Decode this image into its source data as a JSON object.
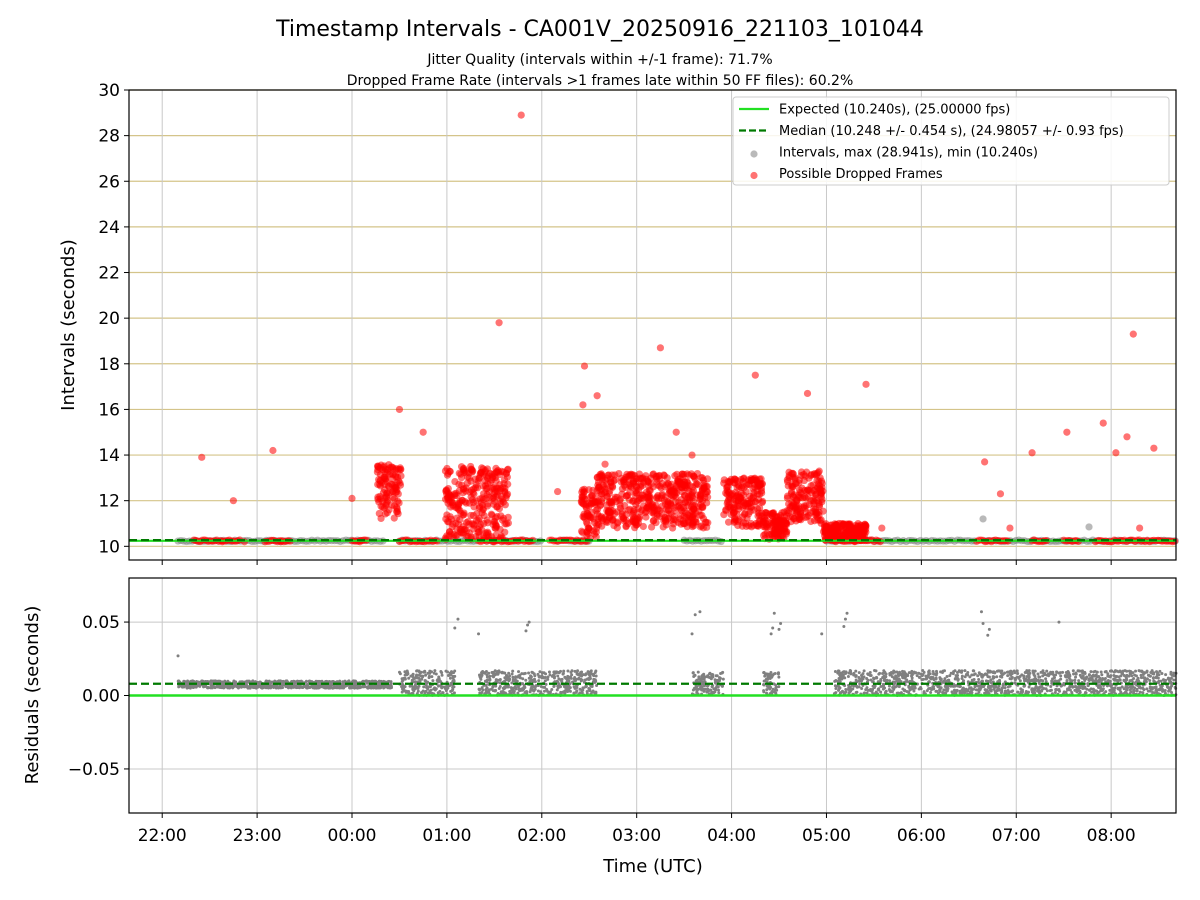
{
  "figure": {
    "title": "Timestamp Intervals - CA001V_20250916_221103_101044",
    "subtitle_1": "Jitter Quality (intervals within +/-1 frame): 71.7%",
    "subtitle_2": "Dropped Frame Rate (intervals >1 frames late within 50 FF files): 60.2%"
  },
  "chart_data": [
    {
      "type": "scatter",
      "panel": "intervals",
      "ylabel": "Intervals (seconds)",
      "ylim": [
        9.4,
        30
      ],
      "yticks": [
        10,
        12,
        14,
        16,
        18,
        20,
        22,
        24,
        26,
        28,
        30
      ],
      "xlim": [
        "21:39",
        "08:41"
      ],
      "horizontal_grid": "on",
      "legend_position": "top-right",
      "expected_line": {
        "value": 10.24,
        "color": "#22e022",
        "label": "Expected (10.240s), (25.00000 fps)"
      },
      "median_line": {
        "value": 10.248,
        "color": "#007a00",
        "label": "Median (10.248 +/- 0.454 s), (24.98057 +/- 0.93 fps)"
      },
      "series": [
        {
          "name": "Intervals, max (28.941s), min (10.240s)",
          "color": "#808080",
          "baseline_segments": [
            [
              "22:10",
              "00:20"
            ],
            [
              "00:30",
              "01:20"
            ],
            [
              "01:25",
              "02:00"
            ],
            [
              "02:10",
              "02:30"
            ],
            [
              "03:30",
              "03:55"
            ],
            [
              "05:00",
              "06:35"
            ],
            [
              "06:40",
              "08:41"
            ]
          ],
          "points": [
            [
              "06:39",
              11.2
            ],
            [
              "07:46",
              10.85
            ]
          ]
        },
        {
          "name": "Possible Dropped Frames",
          "color": "#ff0000",
          "points": [
            [
              "22:25",
              13.9
            ],
            [
              "22:38",
              10.2
            ],
            [
              "22:45",
              12.0
            ],
            [
              "22:52",
              10.2
            ],
            [
              "23:10",
              14.2
            ],
            [
              "23:15",
              10.2
            ],
            [
              "00:00",
              12.1
            ],
            [
              "00:05",
              10.2
            ],
            [
              "00:30",
              16.0
            ],
            [
              "00:45",
              15.0
            ],
            [
              "01:15",
              13.5
            ],
            [
              "01:30",
              10.2
            ],
            [
              "01:33",
              19.8
            ],
            [
              "01:47",
              28.9
            ],
            [
              "02:10",
              12.4
            ],
            [
              "02:26",
              16.2
            ],
            [
              "02:27",
              17.9
            ],
            [
              "02:35",
              16.6
            ],
            [
              "02:40",
              13.6
            ],
            [
              "03:15",
              18.7
            ],
            [
              "03:25",
              15.0
            ],
            [
              "03:35",
              14.0
            ],
            [
              "04:15",
              17.5
            ],
            [
              "04:48",
              16.7
            ],
            [
              "05:25",
              17.1
            ],
            [
              "05:35",
              10.8
            ],
            [
              "06:40",
              13.7
            ],
            [
              "06:50",
              12.3
            ],
            [
              "06:56",
              10.8
            ],
            [
              "07:10",
              14.1
            ],
            [
              "07:32",
              15.0
            ],
            [
              "07:55",
              15.4
            ],
            [
              "08:03",
              14.1
            ],
            [
              "08:10",
              14.8
            ],
            [
              "08:14",
              19.3
            ],
            [
              "08:18",
              10.8
            ],
            [
              "08:27",
              14.3
            ]
          ],
          "dense_clusters": [
            {
              "x": [
                "00:16",
                "00:31"
              ],
              "y": [
                11.2,
                13.6
              ]
            },
            {
              "x": [
                "00:59",
                "01:40"
              ],
              "y": [
                10.3,
                13.5
              ]
            },
            {
              "x": [
                "02:25",
                "02:35"
              ],
              "y": [
                10.3,
                12.5
              ]
            },
            {
              "x": [
                "02:35",
                "03:45"
              ],
              "y": [
                10.8,
                13.2
              ]
            },
            {
              "x": [
                "03:55",
                "04:20"
              ],
              "y": [
                10.8,
                13.0
              ]
            },
            {
              "x": [
                "04:20",
                "04:35"
              ],
              "y": [
                10.3,
                11.5
              ]
            },
            {
              "x": [
                "04:35",
                "04:58"
              ],
              "y": [
                11.0,
                13.3
              ]
            },
            {
              "x": [
                "04:58",
                "05:25"
              ],
              "y": [
                10.2,
                11.0
              ]
            }
          ],
          "baseline_segments": [
            [
              "22:20",
              "22:50"
            ],
            [
              "23:05",
              "23:22"
            ],
            [
              "00:00",
              "00:10"
            ],
            [
              "00:30",
              "00:55"
            ],
            [
              "01:20",
              "01:55"
            ],
            [
              "02:05",
              "02:30"
            ],
            [
              "05:05",
              "05:35"
            ],
            [
              "06:35",
              "06:55"
            ],
            [
              "07:10",
              "07:20"
            ],
            [
              "07:30",
              "07:40"
            ],
            [
              "07:50",
              "08:41"
            ]
          ]
        }
      ],
      "legend": [
        {
          "label": "Expected (10.240s), (25.00000 fps)",
          "marker": "solid-line",
          "color": "#22e022"
        },
        {
          "label": "Median (10.248 +/- 0.454 s), (24.98057 +/- 0.93 fps)",
          "marker": "dashed-line",
          "color": "#007a00"
        },
        {
          "label": "Intervals, max (28.941s), min (10.240s)",
          "marker": "dot",
          "color": "#808080"
        },
        {
          "label": "Possible Dropped Frames",
          "marker": "dot",
          "color": "#ff0000"
        }
      ]
    },
    {
      "type": "scatter",
      "panel": "residuals",
      "xlabel": "Time (UTC)",
      "ylabel": "Residuals (seconds)",
      "ylim": [
        -0.08,
        0.08
      ],
      "yticks": [
        {
          "value": 0.05,
          "label": "0.05"
        },
        {
          "value": 0.0,
          "label": "0.00"
        },
        {
          "value": -0.05,
          "label": "−0.05"
        }
      ],
      "xticks": [
        "22:00",
        "23:00",
        "00:00",
        "01:00",
        "02:00",
        "03:00",
        "04:00",
        "05:00",
        "06:00",
        "07:00",
        "08:00"
      ],
      "xlim": [
        "21:39",
        "08:41"
      ],
      "grid": "on",
      "zero_line": {
        "value": 0.0,
        "color": "#22e022"
      },
      "median_line": {
        "value": 0.008,
        "color": "#007a00"
      },
      "series": [
        {
          "name": "",
          "color": "#808080",
          "bands": [
            {
              "x": [
                "22:10",
                "00:25"
              ],
              "y": [
                0.005,
                0.01
              ]
            },
            {
              "x": [
                "00:30",
                "01:05"
              ],
              "y": [
                0.0,
                0.017
              ]
            },
            {
              "x": [
                "01:20",
                "02:35"
              ],
              "y": [
                0.0,
                0.017
              ]
            },
            {
              "x": [
                "03:35",
                "03:55"
              ],
              "y": [
                0.0,
                0.016
              ]
            },
            {
              "x": [
                "04:20",
                "04:30"
              ],
              "y": [
                0.0,
                0.016
              ]
            },
            {
              "x": [
                "05:05",
                "08:41"
              ],
              "y": [
                0.0,
                0.017
              ]
            }
          ],
          "points": [
            [
              "22:10",
              0.027
            ],
            [
              "01:05",
              0.046
            ],
            [
              "01:07",
              0.052
            ],
            [
              "01:20",
              0.042
            ],
            [
              "01:50",
              0.044
            ],
            [
              "01:51",
              0.048
            ],
            [
              "01:52",
              0.05
            ],
            [
              "03:35",
              0.042
            ],
            [
              "03:37",
              0.055
            ],
            [
              "03:40",
              0.057
            ],
            [
              "04:25",
              0.042
            ],
            [
              "04:26",
              0.046
            ],
            [
              "04:27",
              0.056
            ],
            [
              "04:30",
              0.045
            ],
            [
              "04:31",
              0.049
            ],
            [
              "04:57",
              0.042
            ],
            [
              "05:11",
              0.047
            ],
            [
              "05:12",
              0.052
            ],
            [
              "05:13",
              0.056
            ],
            [
              "06:38",
              0.057
            ],
            [
              "06:39",
              0.049
            ],
            [
              "06:42",
              0.041
            ],
            [
              "06:43",
              0.045
            ],
            [
              "07:27",
              0.05
            ]
          ]
        }
      ]
    }
  ]
}
